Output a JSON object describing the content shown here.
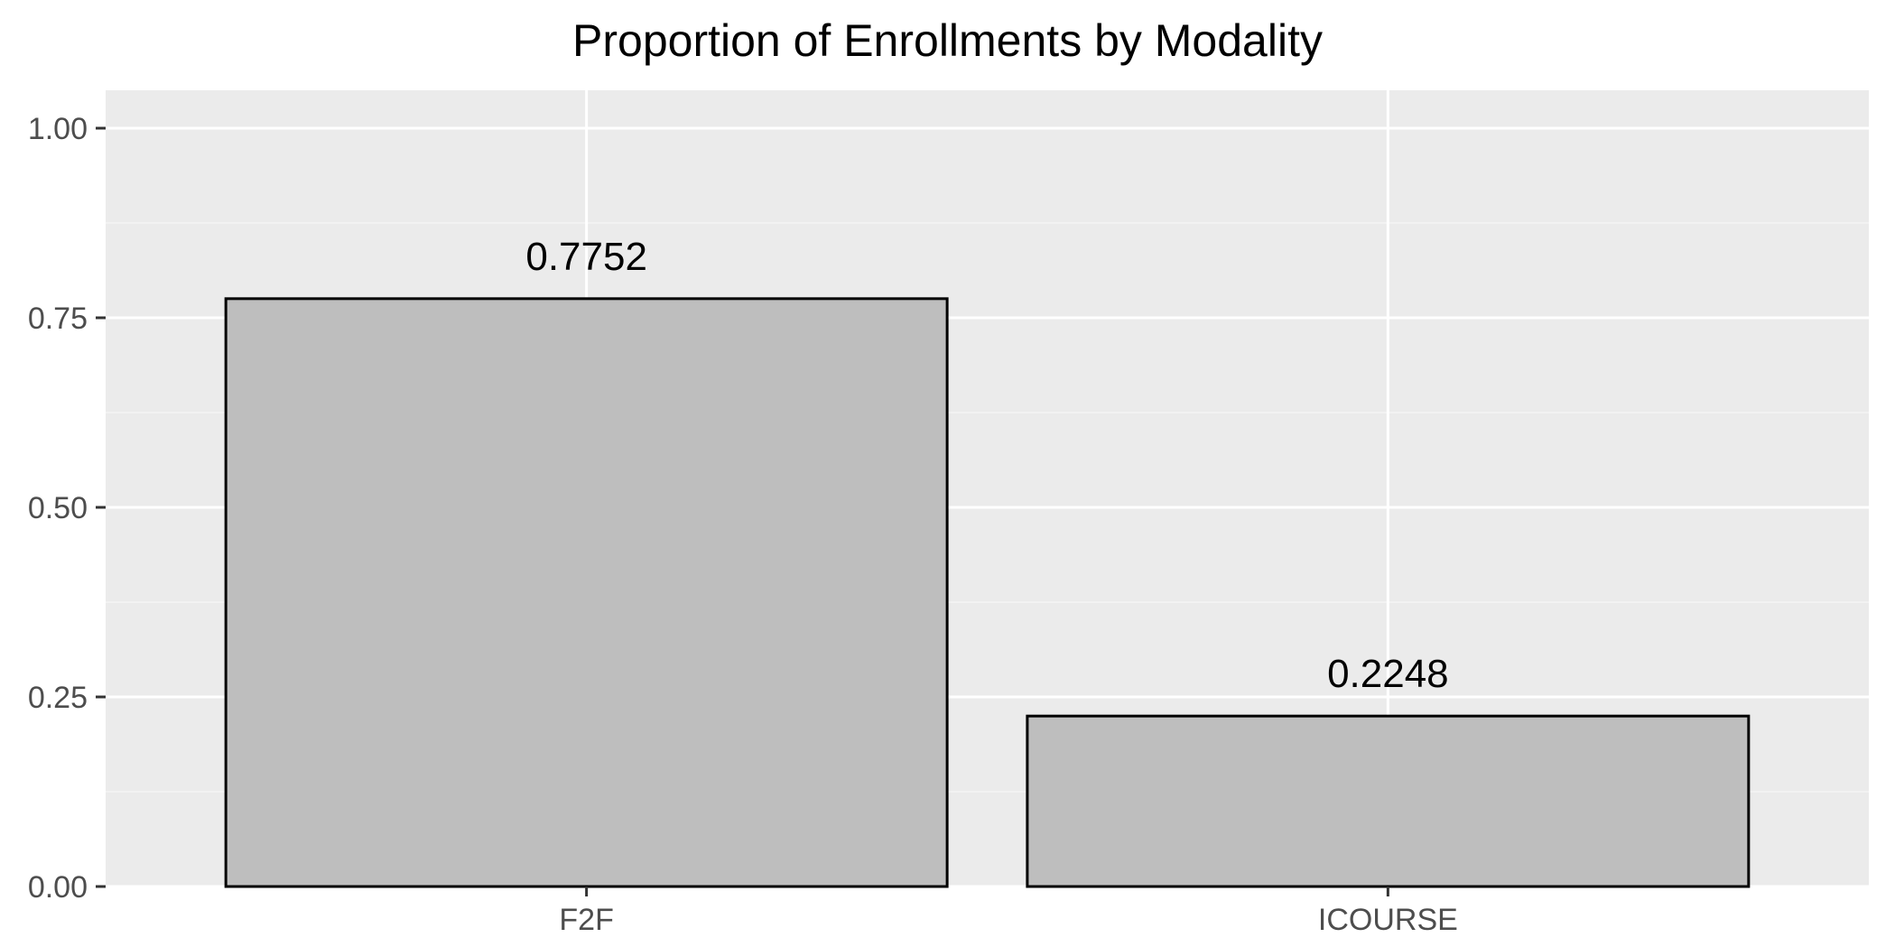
{
  "chart_data": {
    "type": "bar",
    "title": "Proportion of Enrollments by Modality",
    "xlabel": "",
    "ylabel": "",
    "categories": [
      "F2F",
      "ICOURSE"
    ],
    "values": [
      0.7752,
      0.2248
    ],
    "value_labels": [
      "0.7752",
      "0.2248"
    ],
    "ylim": [
      0,
      1.05
    ],
    "y_ticks": [
      0,
      0.25,
      0.5,
      0.75,
      1.0
    ],
    "y_tick_labels": [
      "0.00",
      "0.25",
      "0.50",
      "0.75",
      "1.00"
    ],
    "grid": true,
    "legend": "none",
    "colors": {
      "panel_background": "#EBEBEB",
      "grid_major": "#FFFFFF",
      "grid_minor": "#F5F5F5",
      "bar_fill": "#BEBEBE",
      "bar_outline": "#000000",
      "tick_label": "#4D4D4D",
      "tick_mark": "#333333",
      "text": "#000000"
    }
  }
}
